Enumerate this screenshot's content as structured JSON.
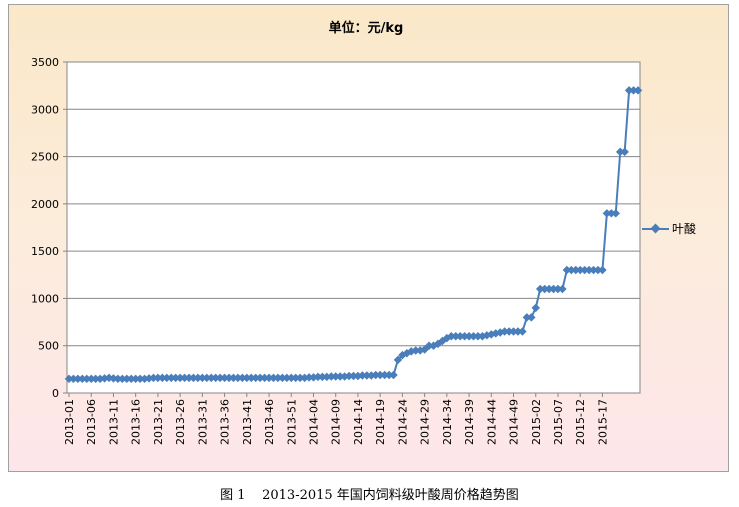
{
  "caption": "图 1    2013-2015 年国内饲料级叶酸周价格趋势图",
  "chart_data": {
    "type": "line",
    "title": "单位：元/kg",
    "xlabel": "",
    "ylabel": "",
    "ylim": [
      0,
      3500
    ],
    "yticks": [
      0,
      500,
      1000,
      1500,
      2000,
      2500,
      3000,
      3500
    ],
    "grid": true,
    "legend_position": "right",
    "series_color": "#4a7ebb",
    "xtick_labels": [
      "2013-01",
      "2013-06",
      "2013-11",
      "2013-16",
      "2013-21",
      "2013-26",
      "2013-31",
      "2013-36",
      "2013-41",
      "2013-46",
      "2013-51",
      "2014-04",
      "2014-09",
      "2014-14",
      "2014-19",
      "2014-24",
      "2014-29",
      "2014-34",
      "2014-39",
      "2014-44",
      "2014-49",
      "2015-02",
      "2015-07",
      "2015-12",
      "2015-17"
    ],
    "series": [
      {
        "name": "叶酸",
        "values": [
          150,
          150,
          150,
          150,
          150,
          150,
          150,
          150,
          155,
          160,
          155,
          150,
          150,
          150,
          150,
          150,
          150,
          150,
          155,
          160,
          160,
          160,
          160,
          160,
          160,
          160,
          160,
          160,
          160,
          160,
          160,
          160,
          160,
          160,
          160,
          160,
          160,
          160,
          160,
          160,
          160,
          160,
          160,
          160,
          160,
          160,
          160,
          160,
          160,
          160,
          160,
          160,
          160,
          160,
          165,
          165,
          170,
          170,
          170,
          175,
          175,
          175,
          175,
          180,
          180,
          180,
          185,
          185,
          185,
          190,
          190,
          190,
          190,
          190,
          350,
          400,
          420,
          440,
          450,
          450,
          460,
          500,
          500,
          520,
          550,
          580,
          600,
          600,
          600,
          600,
          600,
          600,
          600,
          600,
          610,
          620,
          630,
          640,
          650,
          650,
          650,
          650,
          650,
          800,
          800,
          900,
          1100,
          1100,
          1100,
          1100,
          1100,
          1100,
          1300,
          1300,
          1300,
          1300,
          1300,
          1300,
          1300,
          1300,
          1300,
          1900,
          1900,
          1900,
          2550,
          2550,
          3200,
          3200,
          3200
        ]
      }
    ]
  }
}
